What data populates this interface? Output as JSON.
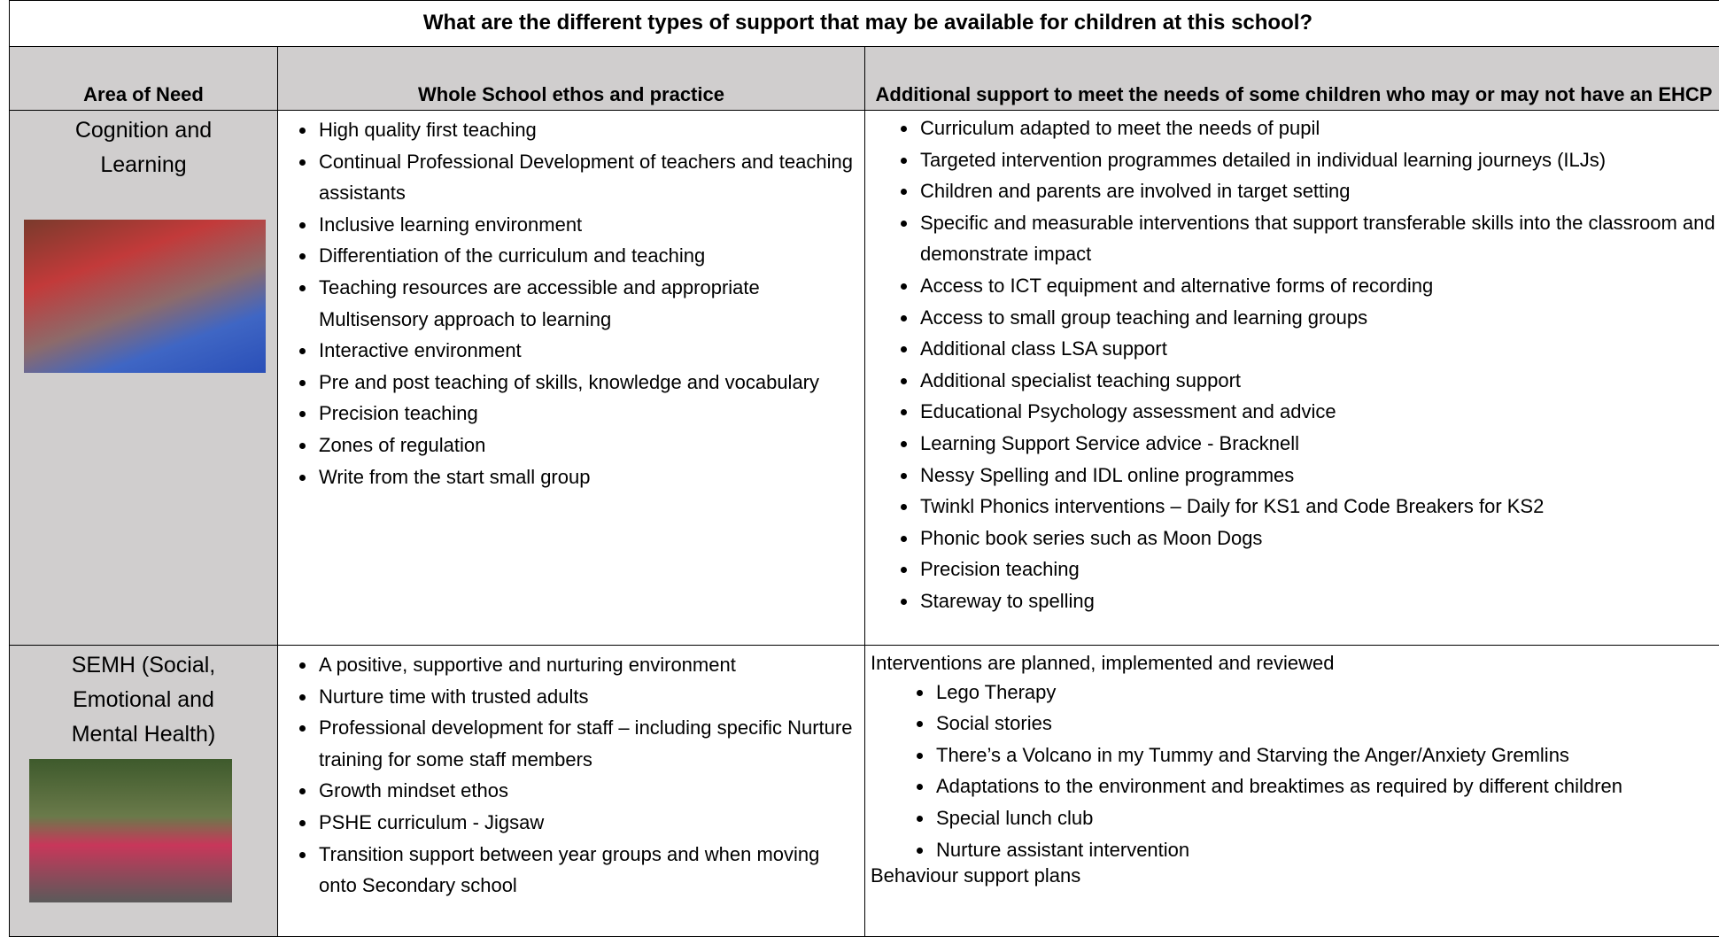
{
  "title": "What are the different types of support that may be available for children at this school?",
  "headers": [
    "Area of Need",
    "Whole School ethos and practice",
    "Additional support to meet the needs of some children who may or may not have an EHCP"
  ],
  "rows": [
    {
      "area": "Cognition and Learning",
      "whole_school": [
        "High quality first teaching",
        "Continual Professional Development of teachers and teaching assistants",
        "Inclusive learning environment",
        "Differentiation of the curriculum and teaching",
        "Teaching resources are accessible and appropriate Multisensory approach to learning",
        "Interactive environment",
        "Pre and post teaching of skills, knowledge and vocabulary",
        "Precision teaching",
        "Zones of regulation",
        "Write from the start small group"
      ],
      "additional_bullets": [
        "Curriculum adapted to meet the needs of pupil",
        "Targeted intervention programmes detailed in individual learning journeys (ILJs)",
        "Children and parents are involved in target setting",
        "Specific and measurable interventions that support transferable skills into the classroom and demonstrate impact",
        "Access to ICT equipment and alternative forms of recording",
        "Access to small group teaching and learning groups",
        "Additional class LSA support",
        "Additional specialist teaching support",
        "Educational Psychology assessment and advice",
        "Learning Support Service advice - Bracknell",
        "Nessy Spelling and IDL online programmes",
        "Twinkl Phonics interventions – Daily for KS1 and Code Breakers for KS2",
        "Phonic book series such as Moon Dogs",
        "Precision teaching",
        "Stareway to spelling"
      ]
    },
    {
      "area": "SEMH (Social, Emotional and Mental Health)",
      "whole_school": [
        "A positive, supportive and nurturing environment",
        "Nurture time with trusted adults",
        "Professional development for staff – including specific Nurture training for some staff members",
        "Growth mindset ethos",
        "PSHE curriculum - Jigsaw",
        "Transition support between year groups and when moving onto Secondary school"
      ],
      "additional_intro": "Interventions are planned, implemented and reviewed",
      "additional_bullets": [
        "Lego Therapy",
        "Social stories",
        "There’s a Volcano in my Tummy and Starving the Anger/Anxiety Gremlins",
        "Adaptations to the environment and breaktimes as required by different children",
        "Special lunch club",
        "Nurture assistant intervention"
      ],
      "additional_outro": "Behaviour support plans"
    }
  ]
}
